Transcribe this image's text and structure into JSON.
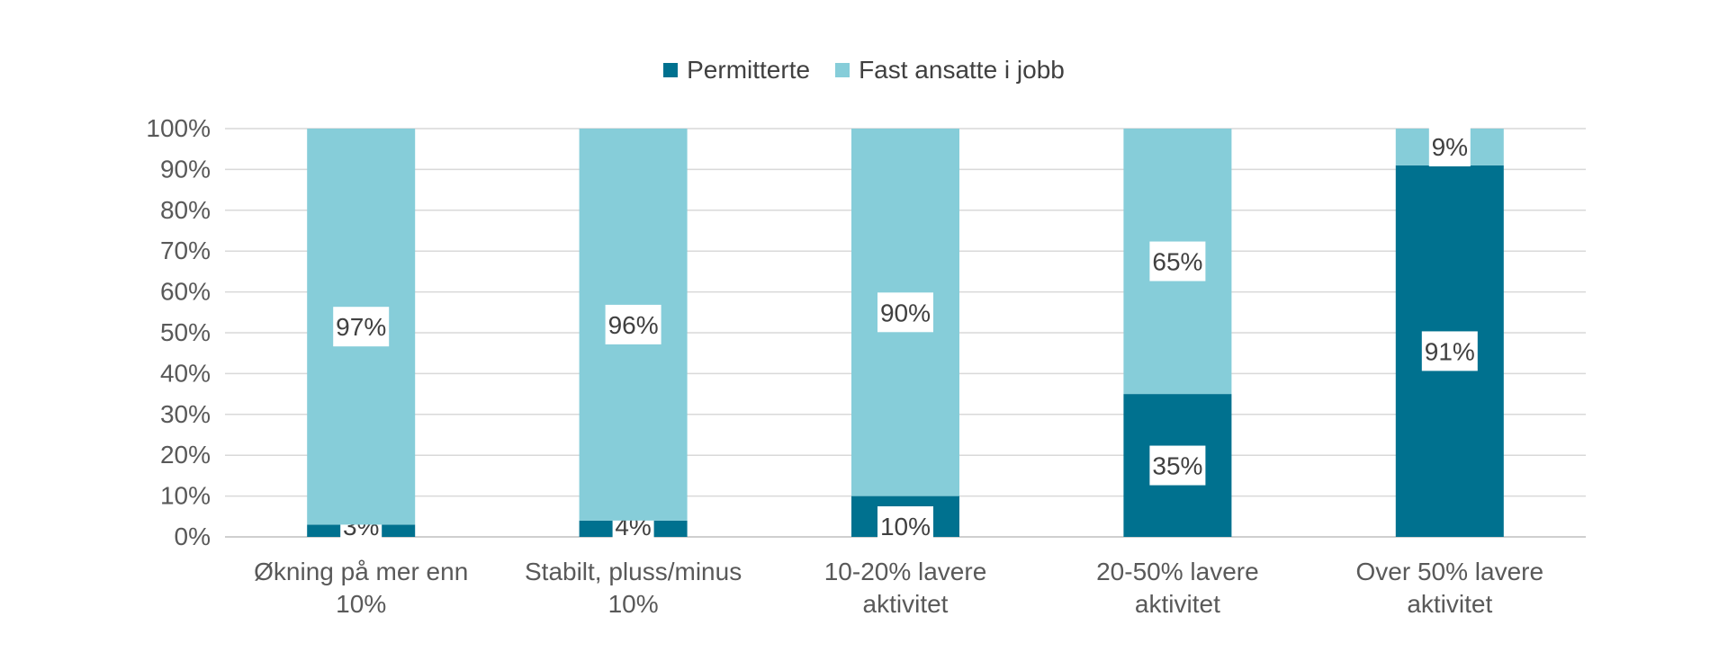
{
  "chart_data": {
    "type": "bar",
    "stacked": true,
    "categories": [
      [
        "Økning på mer enn",
        "10%"
      ],
      [
        "Stabilt, pluss/minus",
        "10%"
      ],
      [
        "10-20% lavere",
        "aktivitet"
      ],
      [
        "20-50% lavere",
        "aktivitet"
      ],
      [
        "Over 50% lavere",
        "aktivitet"
      ]
    ],
    "series": [
      {
        "name": "Permitterte",
        "color": "#00718F",
        "values": [
          3,
          4,
          10,
          35,
          91
        ],
        "labels": [
          "3%",
          "4%",
          "10%",
          "35%",
          "91%"
        ]
      },
      {
        "name": "Fast ansatte i jobb",
        "color": "#86CDD9",
        "values": [
          97,
          96,
          90,
          65,
          9
        ],
        "labels": [
          "97%",
          "96%",
          "90%",
          "65%",
          "9%"
        ]
      }
    ],
    "yticks": [
      "0%",
      "10%",
      "20%",
      "30%",
      "40%",
      "50%",
      "60%",
      "70%",
      "80%",
      "90%",
      "100%"
    ],
    "ylim": [
      0,
      100
    ],
    "grid": true,
    "legend": "top-center",
    "title": "",
    "xlabel": "",
    "ylabel": ""
  }
}
